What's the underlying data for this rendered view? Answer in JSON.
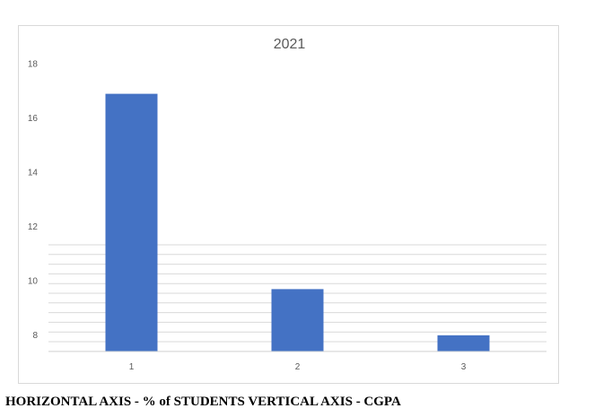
{
  "chart_data": {
    "type": "bar",
    "title": "2021",
    "categories": [
      "1",
      "2",
      "3"
    ],
    "values": [
      17.5,
      10.3,
      8.6
    ],
    "ylim": [
      8,
      18
    ],
    "yticks": [
      "8",
      "10",
      "12",
      "14",
      "16",
      "18"
    ],
    "xlabel": "",
    "ylabel": "",
    "bar_color": "#4472C4",
    "gridline_color": "#d9d9d9"
  },
  "caption": "HORIZONTAL AXIS - % of STUDENTS VERTICAL AXIS - CGPA"
}
